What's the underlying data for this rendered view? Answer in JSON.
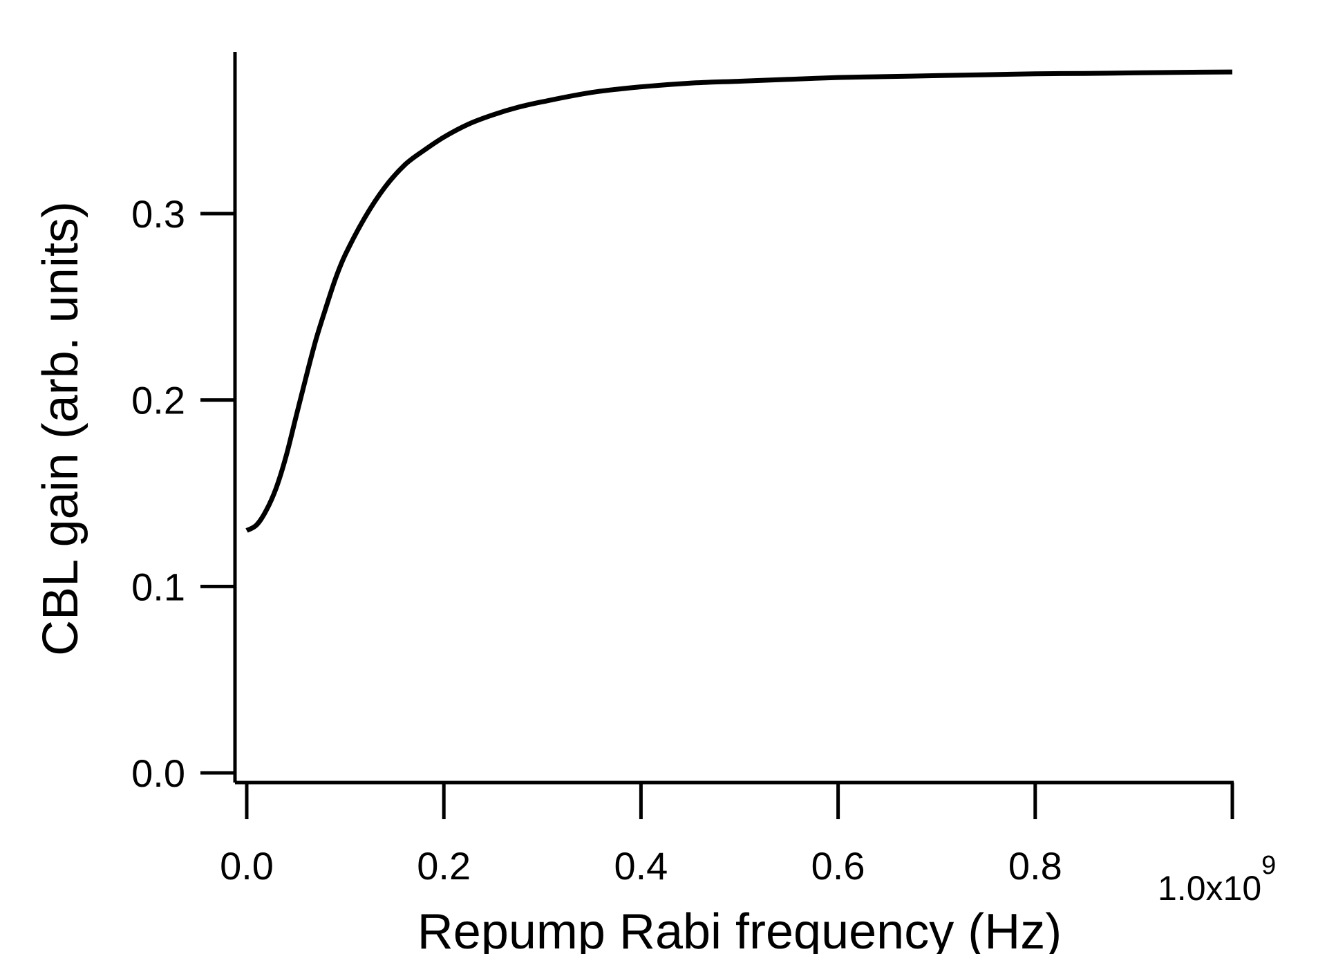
{
  "chart_data": {
    "type": "line",
    "xlabel": "Repump Rabi frequency (Hz)",
    "ylabel": "CBL gain (arb. units)",
    "x_multiplier_label": "1.0x10",
    "x_multiplier_exponent": "9",
    "xlim": [
      0,
      1000000000
    ],
    "ylim": [
      0,
      0.38
    ],
    "x_ticks": [
      {
        "value": 0,
        "label": "0.0"
      },
      {
        "value": 200000000,
        "label": "0.2"
      },
      {
        "value": 400000000,
        "label": "0.4"
      },
      {
        "value": 600000000,
        "label": "0.6"
      },
      {
        "value": 800000000,
        "label": "0.8"
      }
    ],
    "y_ticks": [
      {
        "value": 0.0,
        "label": "0.0"
      },
      {
        "value": 0.1,
        "label": "0.1"
      },
      {
        "value": 0.2,
        "label": "0.2"
      },
      {
        "value": 0.3,
        "label": "0.3"
      }
    ],
    "grid": false,
    "series": [
      {
        "color": "#000000",
        "x": [
          0,
          10000000,
          20000000,
          30000000,
          40000000,
          50000000,
          60000000,
          70000000,
          80000000,
          90000000,
          100000000,
          120000000,
          140000000,
          160000000,
          180000000,
          200000000,
          225000000,
          250000000,
          275000000,
          300000000,
          350000000,
          400000000,
          450000000,
          500000000,
          550000000,
          600000000,
          650000000,
          700000000,
          750000000,
          800000000,
          850000000,
          900000000,
          950000000,
          1000000000
        ],
        "y": [
          0.13,
          0.133,
          0.141,
          0.153,
          0.17,
          0.191,
          0.212,
          0.232,
          0.249,
          0.265,
          0.278,
          0.298,
          0.314,
          0.326,
          0.334,
          0.341,
          0.348,
          0.353,
          0.357,
          0.36,
          0.365,
          0.368,
          0.37,
          0.371,
          0.372,
          0.373,
          0.3735,
          0.374,
          0.3745,
          0.375,
          0.3752,
          0.3755,
          0.3758,
          0.376
        ]
      }
    ]
  }
}
